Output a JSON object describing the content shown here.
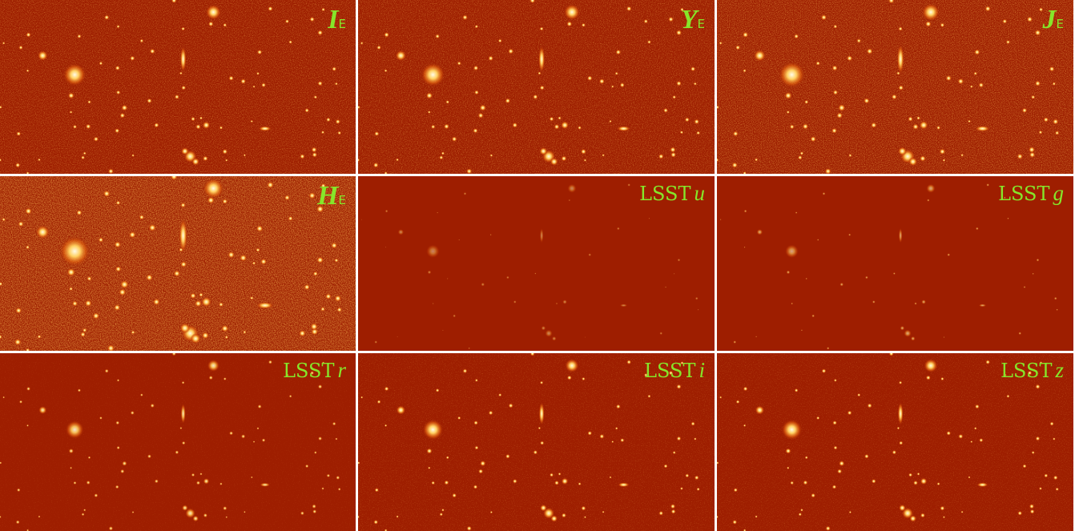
{
  "panels": [
    {
      "label": "I",
      "subscript": "E"
    },
    {
      "label": "Y",
      "subscript": "E"
    },
    {
      "label": "J",
      "subscript": "E"
    },
    {
      "label": "H",
      "subscript": "E"
    },
    {
      "prefix": "LSST",
      "band": "u"
    },
    {
      "prefix": "LSST",
      "band": "g"
    },
    {
      "prefix": "LSST",
      "band": "r"
    },
    {
      "prefix": "LSST",
      "band": "i"
    },
    {
      "prefix": "LSST",
      "band": "z"
    }
  ]
}
